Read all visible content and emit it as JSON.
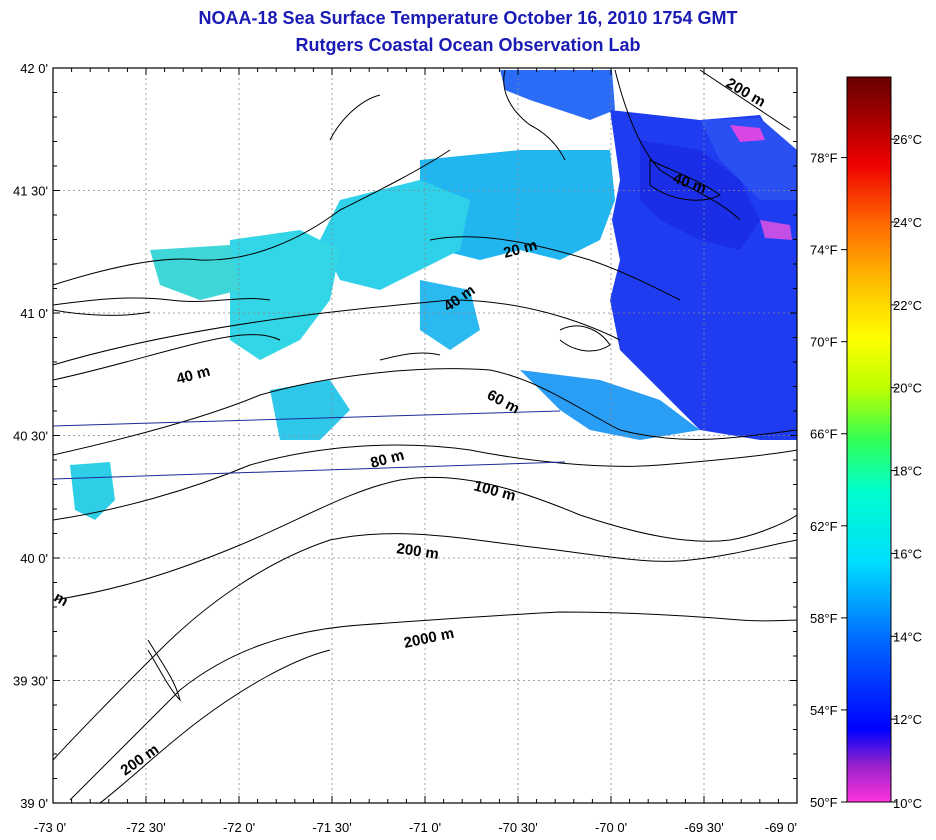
{
  "title": "NOAA-18 Sea Surface Temperature October 16, 2010 1754 GMT",
  "subtitle": "Rutgers Coastal Ocean Observation Lab",
  "map": {
    "lat_range": [
      39.0,
      42.0
    ],
    "lon_range": [
      -73.0,
      -69.0
    ],
    "grid": true,
    "lat_ticks": [
      {
        "value": 42.0,
        "label": "42 0'"
      },
      {
        "value": 41.5,
        "label": "41 30'"
      },
      {
        "value": 41.0,
        "label": "41 0'"
      },
      {
        "value": 40.5,
        "label": "40 30'"
      },
      {
        "value": 40.0,
        "label": "40 0'"
      },
      {
        "value": 39.5,
        "label": "39 30'"
      },
      {
        "value": 39.0,
        "label": "39 0'"
      }
    ],
    "lon_ticks": [
      {
        "value": -73.0,
        "label": "-73 0'"
      },
      {
        "value": -72.5,
        "label": "-72 30'"
      },
      {
        "value": -72.0,
        "label": "-72 0'"
      },
      {
        "value": -71.5,
        "label": "-71 30'"
      },
      {
        "value": -71.0,
        "label": "-71 0'"
      },
      {
        "value": -70.5,
        "label": "-70 30'"
      },
      {
        "value": -70.0,
        "label": "-70 0'"
      },
      {
        "value": -69.5,
        "label": "-69 30'"
      },
      {
        "value": -69.0,
        "label": "-69 0'"
      }
    ],
    "bathymetry_labels": [
      "20 m",
      "40 m",
      "40 m",
      "40 m",
      "60 m",
      "80 m",
      "100 m",
      "200 m",
      "200 m",
      "200 m",
      "2000 m",
      "m"
    ]
  },
  "colorbar": {
    "range_c": [
      10,
      27.5
    ],
    "fahrenheit_labels": [
      "78°F",
      "74°F",
      "70°F",
      "66°F",
      "62°F",
      "58°F",
      "54°F",
      "50°F"
    ],
    "fahrenheit_values": [
      78,
      74,
      70,
      66,
      62,
      58,
      54,
      50
    ],
    "celsius_labels": [
      "26°C",
      "24°C",
      "22°C",
      "20°C",
      "18°C",
      "16°C",
      "14°C",
      "12°C",
      "10°C"
    ],
    "celsius_values": [
      26,
      24,
      22,
      20,
      18,
      16,
      14,
      12,
      10
    ],
    "colors": [
      "#ff33cc",
      "#9933cc",
      "#0000ff",
      "#0066ff",
      "#00ccff",
      "#00ffcc",
      "#33ff66",
      "#ccff00",
      "#ffff00",
      "#ffaa00",
      "#ff5500",
      "#ee0000",
      "#990000",
      "#660000"
    ]
  }
}
